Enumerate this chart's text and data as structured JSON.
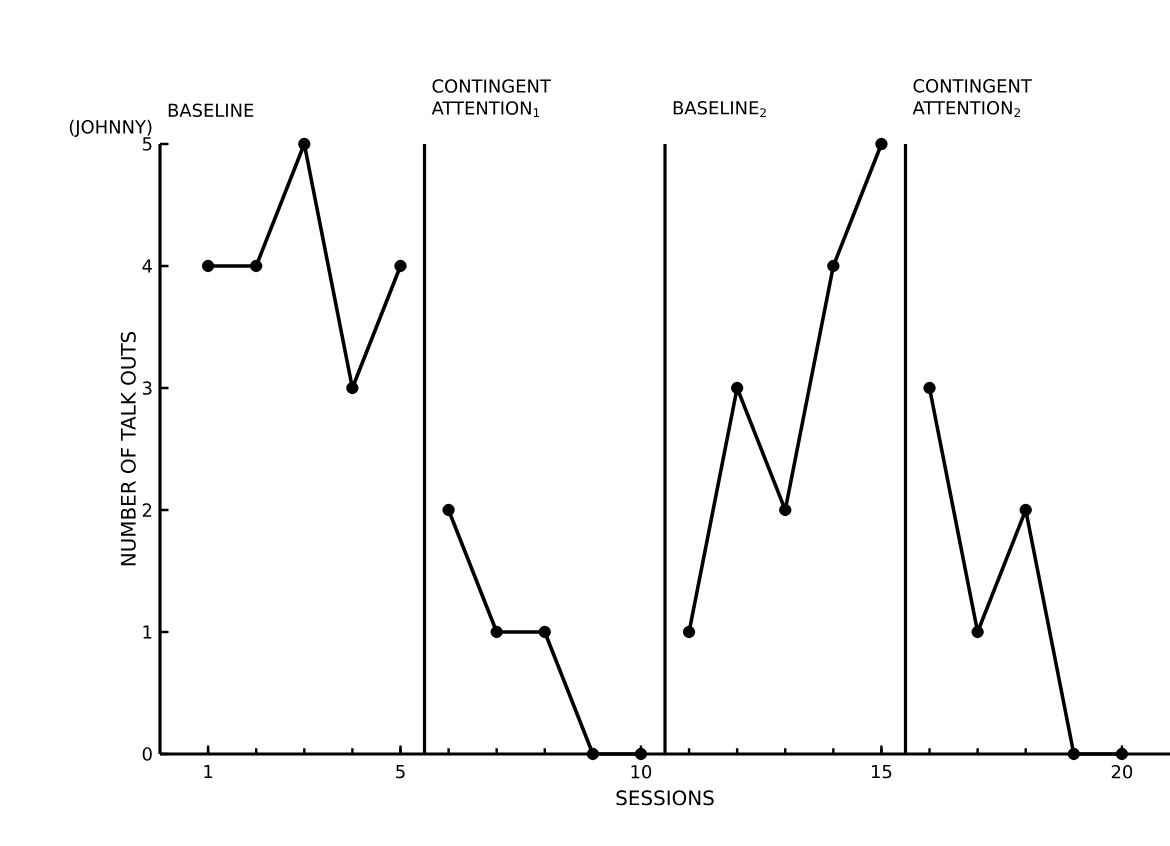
{
  "chart_data": {
    "type": "line",
    "xlabel": "SESSIONS",
    "ylabel": "NUMBER OF TALK OUTS",
    "annotations": [
      "(JOHNNY)",
      "BASELINE",
      "CONTINGENT ATTENTION$_{1}$",
      "BASELINE$_{2}$",
      "CONTINGENT ATTENTION$_{2}$"
    ],
    "series": [
      {
        "color": "#000000",
        "x": [
          1,
          2,
          3,
          4,
          5
        ],
        "values": [
          4,
          4,
          5,
          3,
          4
        ]
      },
      {
        "color": "#000000",
        "x": [
          6,
          7,
          8,
          9,
          10
        ],
        "values": [
          2,
          1,
          1,
          0,
          0
        ]
      },
      {
        "color": "#000000",
        "x": [
          11,
          12,
          13,
          14,
          15
        ],
        "values": [
          1,
          3,
          2,
          4,
          5
        ]
      },
      {
        "color": "#000000",
        "x": [
          16,
          17,
          18,
          19,
          20
        ],
        "values": [
          3,
          1,
          2,
          0,
          0
        ]
      }
    ],
    "ref_lines": [
      {
        "axis": "x",
        "value": 5.5
      },
      {
        "axis": "x",
        "value": 10.5
      },
      {
        "axis": "x",
        "value": 15.5
      }
    ],
    "xlim": [
      0,
      21
    ],
    "ylim": [
      0,
      5
    ],
    "xticks": [
      1,
      5,
      10,
      15,
      20
    ],
    "yticks": [
      0,
      1,
      2,
      3,
      4,
      5
    ],
    "marker": "circle",
    "line_style": "solid",
    "grid": false
  }
}
